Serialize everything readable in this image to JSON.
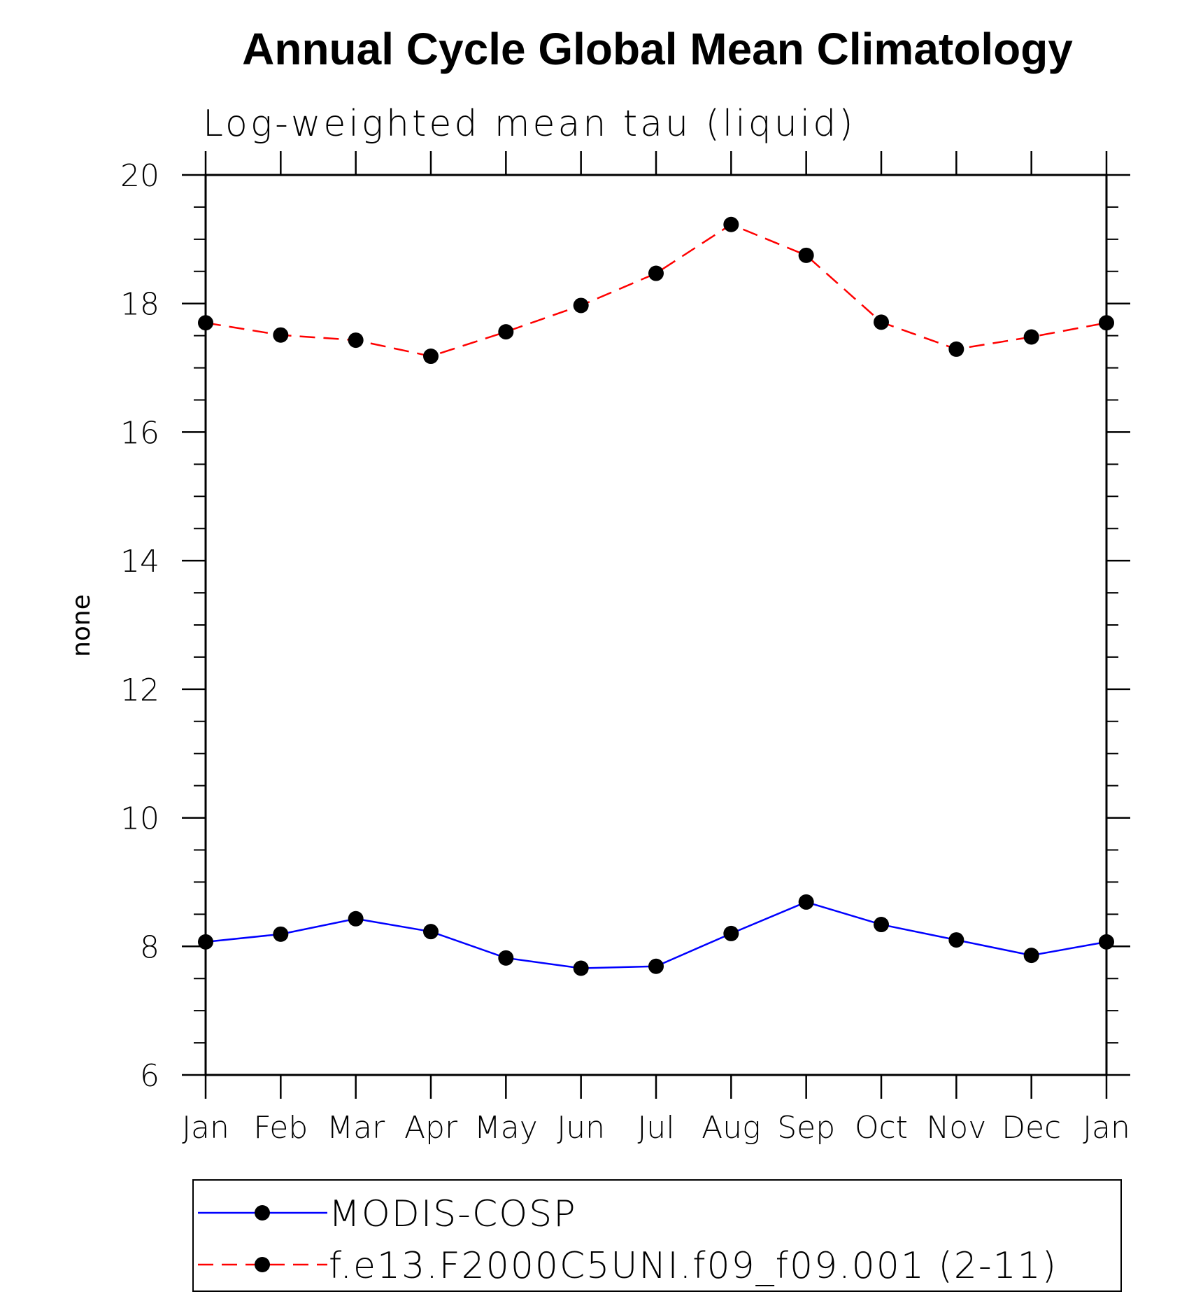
{
  "chart_data": {
    "type": "line",
    "title": "Annual Cycle Global Mean Climatology",
    "subtitle": "Log-weighted mean tau (liquid)",
    "xlabel": "",
    "ylabel": "none",
    "categories": [
      "Jan",
      "Feb",
      "Mar",
      "Apr",
      "May",
      "Jun",
      "Jul",
      "Aug",
      "Sep",
      "Oct",
      "Nov",
      "Dec",
      "Jan"
    ],
    "ylim": [
      6,
      20
    ],
    "yticks": [
      "6",
      "8",
      "10",
      "12",
      "14",
      "16",
      "18",
      "20"
    ],
    "grid": false,
    "legend_position": "bottom",
    "series": [
      {
        "name": "MODIS-COSP",
        "color": "#0000ff",
        "style": "solid",
        "marker": "filled-circle",
        "values": [
          8.07,
          8.19,
          8.43,
          8.23,
          7.82,
          7.66,
          7.69,
          8.2,
          8.69,
          8.34,
          8.1,
          7.86,
          8.07
        ]
      },
      {
        "name": "f.e13.F2000C5UNI.f09_f09.001 (2-11)",
        "color": "#ff0000",
        "style": "dashed",
        "marker": "filled-circle",
        "values": [
          17.7,
          17.51,
          17.43,
          17.18,
          17.56,
          17.97,
          18.47,
          19.23,
          18.75,
          17.71,
          17.29,
          17.48,
          17.7
        ]
      }
    ]
  }
}
